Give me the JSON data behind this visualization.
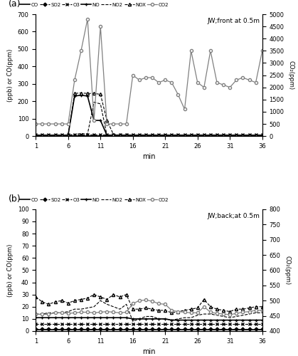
{
  "x": [
    1,
    2,
    3,
    4,
    5,
    6,
    7,
    8,
    9,
    10,
    11,
    12,
    13,
    14,
    15,
    16,
    17,
    18,
    19,
    20,
    21,
    22,
    23,
    24,
    25,
    26,
    27,
    28,
    29,
    30,
    31,
    32,
    33,
    34,
    35,
    36
  ],
  "panel_a": {
    "title": "JW;front at 0.5m",
    "CO": [
      2,
      2,
      2,
      2,
      2,
      2,
      2,
      2,
      2,
      2,
      2,
      2,
      2,
      2,
      2,
      2,
      2,
      2,
      2,
      2,
      2,
      2,
      2,
      2,
      2,
      2,
      2,
      2,
      2,
      2,
      2,
      2,
      2,
      2,
      2,
      2
    ],
    "SO2": [
      2,
      2,
      2,
      2,
      2,
      2,
      2,
      2,
      2,
      2,
      2,
      2,
      2,
      5,
      5,
      2,
      2,
      2,
      2,
      2,
      2,
      2,
      2,
      2,
      2,
      2,
      2,
      2,
      2,
      2,
      2,
      2,
      2,
      2,
      2,
      2
    ],
    "O3": [
      8,
      8,
      8,
      8,
      8,
      8,
      8,
      8,
      8,
      8,
      8,
      8,
      8,
      8,
      8,
      8,
      8,
      8,
      8,
      8,
      8,
      8,
      8,
      8,
      8,
      8,
      8,
      8,
      8,
      8,
      8,
      8,
      8,
      8,
      8,
      8
    ],
    "NO": [
      5,
      5,
      5,
      5,
      5,
      5,
      230,
      235,
      230,
      90,
      90,
      5,
      5,
      5,
      5,
      5,
      5,
      5,
      5,
      5,
      5,
      5,
      5,
      5,
      5,
      5,
      5,
      5,
      5,
      5,
      5,
      5,
      5,
      5,
      5,
      5
    ],
    "NO2": [
      5,
      5,
      5,
      5,
      5,
      5,
      10,
      15,
      12,
      195,
      185,
      5,
      5,
      5,
      5,
      5,
      5,
      5,
      5,
      5,
      5,
      5,
      5,
      5,
      5,
      5,
      5,
      5,
      5,
      5,
      5,
      5,
      5,
      5,
      5,
      5
    ],
    "NOX": [
      5,
      5,
      5,
      5,
      5,
      5,
      245,
      248,
      245,
      245,
      240,
      90,
      10,
      5,
      5,
      5,
      5,
      5,
      5,
      5,
      5,
      5,
      5,
      5,
      5,
      5,
      5,
      5,
      5,
      5,
      5,
      5,
      5,
      5,
      5,
      5
    ],
    "CO2": [
      500,
      500,
      500,
      500,
      500,
      500,
      2300,
      3500,
      4800,
      650,
      4500,
      500,
      500,
      500,
      500,
      2500,
      2300,
      2400,
      2400,
      2200,
      2300,
      2200,
      1700,
      1100,
      3500,
      2200,
      2000,
      3500,
      2200,
      2100,
      2000,
      2300,
      2400,
      2300,
      2200,
      3500
    ],
    "ylim_left": [
      0,
      700
    ],
    "ylim_right": [
      0,
      5000
    ],
    "yticks_left": [
      0,
      100,
      200,
      300,
      400,
      500,
      600,
      700
    ],
    "yticks_right": [
      0,
      500,
      1000,
      1500,
      2000,
      2500,
      3000,
      3500,
      4000,
      4500,
      5000
    ]
  },
  "panel_b": {
    "title": "JW;back;at 0.5m",
    "CO": [
      1,
      1,
      1,
      1,
      1,
      1,
      1,
      1,
      1,
      1,
      1,
      1,
      1,
      1,
      1,
      1,
      1,
      1,
      1,
      1,
      1,
      1,
      1,
      1,
      1,
      1,
      1,
      1,
      1,
      1,
      1,
      1,
      1,
      1,
      1,
      1
    ],
    "SO2": [
      2,
      2,
      2,
      2,
      2,
      2,
      2,
      2,
      2,
      2,
      2,
      2,
      2,
      2,
      2,
      2,
      2,
      2,
      2,
      2,
      2,
      2,
      2,
      2,
      2,
      2,
      2,
      2,
      2,
      2,
      2,
      2,
      2,
      2,
      2,
      2
    ],
    "O3": [
      6,
      6,
      6,
      6,
      6,
      6,
      6,
      6,
      6,
      6,
      6,
      6,
      6,
      6,
      6,
      6,
      6,
      6,
      6,
      6,
      6,
      6,
      6,
      6,
      6,
      6,
      6,
      6,
      6,
      6,
      6,
      6,
      6,
      6,
      6,
      6
    ],
    "NO": [
      11,
      11,
      11,
      11,
      11,
      11,
      11,
      11,
      11,
      11,
      11,
      11,
      11,
      11,
      11,
      10,
      10,
      10,
      10,
      10,
      10,
      9,
      9,
      9,
      9,
      9,
      9,
      9,
      9,
      9,
      9,
      9,
      9,
      9,
      9,
      9
    ],
    "NO2": [
      14,
      14,
      15,
      15,
      15,
      16,
      18,
      18,
      19,
      20,
      25,
      22,
      20,
      18,
      22,
      8,
      10,
      12,
      12,
      10,
      10,
      9,
      10,
      11,
      11,
      13,
      14,
      14,
      13,
      12,
      11,
      12,
      13,
      14,
      15,
      15
    ],
    "NOX": [
      28,
      24,
      22,
      24,
      25,
      23,
      25,
      26,
      27,
      30,
      28,
      26,
      30,
      28,
      30,
      18,
      18,
      19,
      18,
      17,
      17,
      15,
      16,
      17,
      18,
      19,
      26,
      20,
      18,
      17,
      16,
      18,
      18,
      19,
      20,
      20
    ],
    "CO2": [
      455,
      455,
      455,
      460,
      460,
      458,
      460,
      462,
      462,
      460,
      462,
      464,
      462,
      460,
      462,
      490,
      500,
      502,
      498,
      490,
      488,
      468,
      464,
      462,
      460,
      460,
      480,
      462,
      458,
      456,
      454,
      458,
      462,
      464,
      468,
      468
    ],
    "ylim_left": [
      0,
      100
    ],
    "ylim_right": [
      400,
      800
    ],
    "yticks_left": [
      0,
      10,
      20,
      30,
      40,
      50,
      60,
      70,
      80,
      90,
      100
    ],
    "yticks_right": [
      400,
      450,
      500,
      550,
      600,
      650,
      700,
      750,
      800
    ]
  },
  "xticks": [
    1,
    6,
    11,
    16,
    21,
    26,
    31,
    36
  ],
  "xlabel": "min",
  "ylabel_left": "(ppb) or CO(ppm)",
  "ylabel_right": "CO₂(ppm)"
}
